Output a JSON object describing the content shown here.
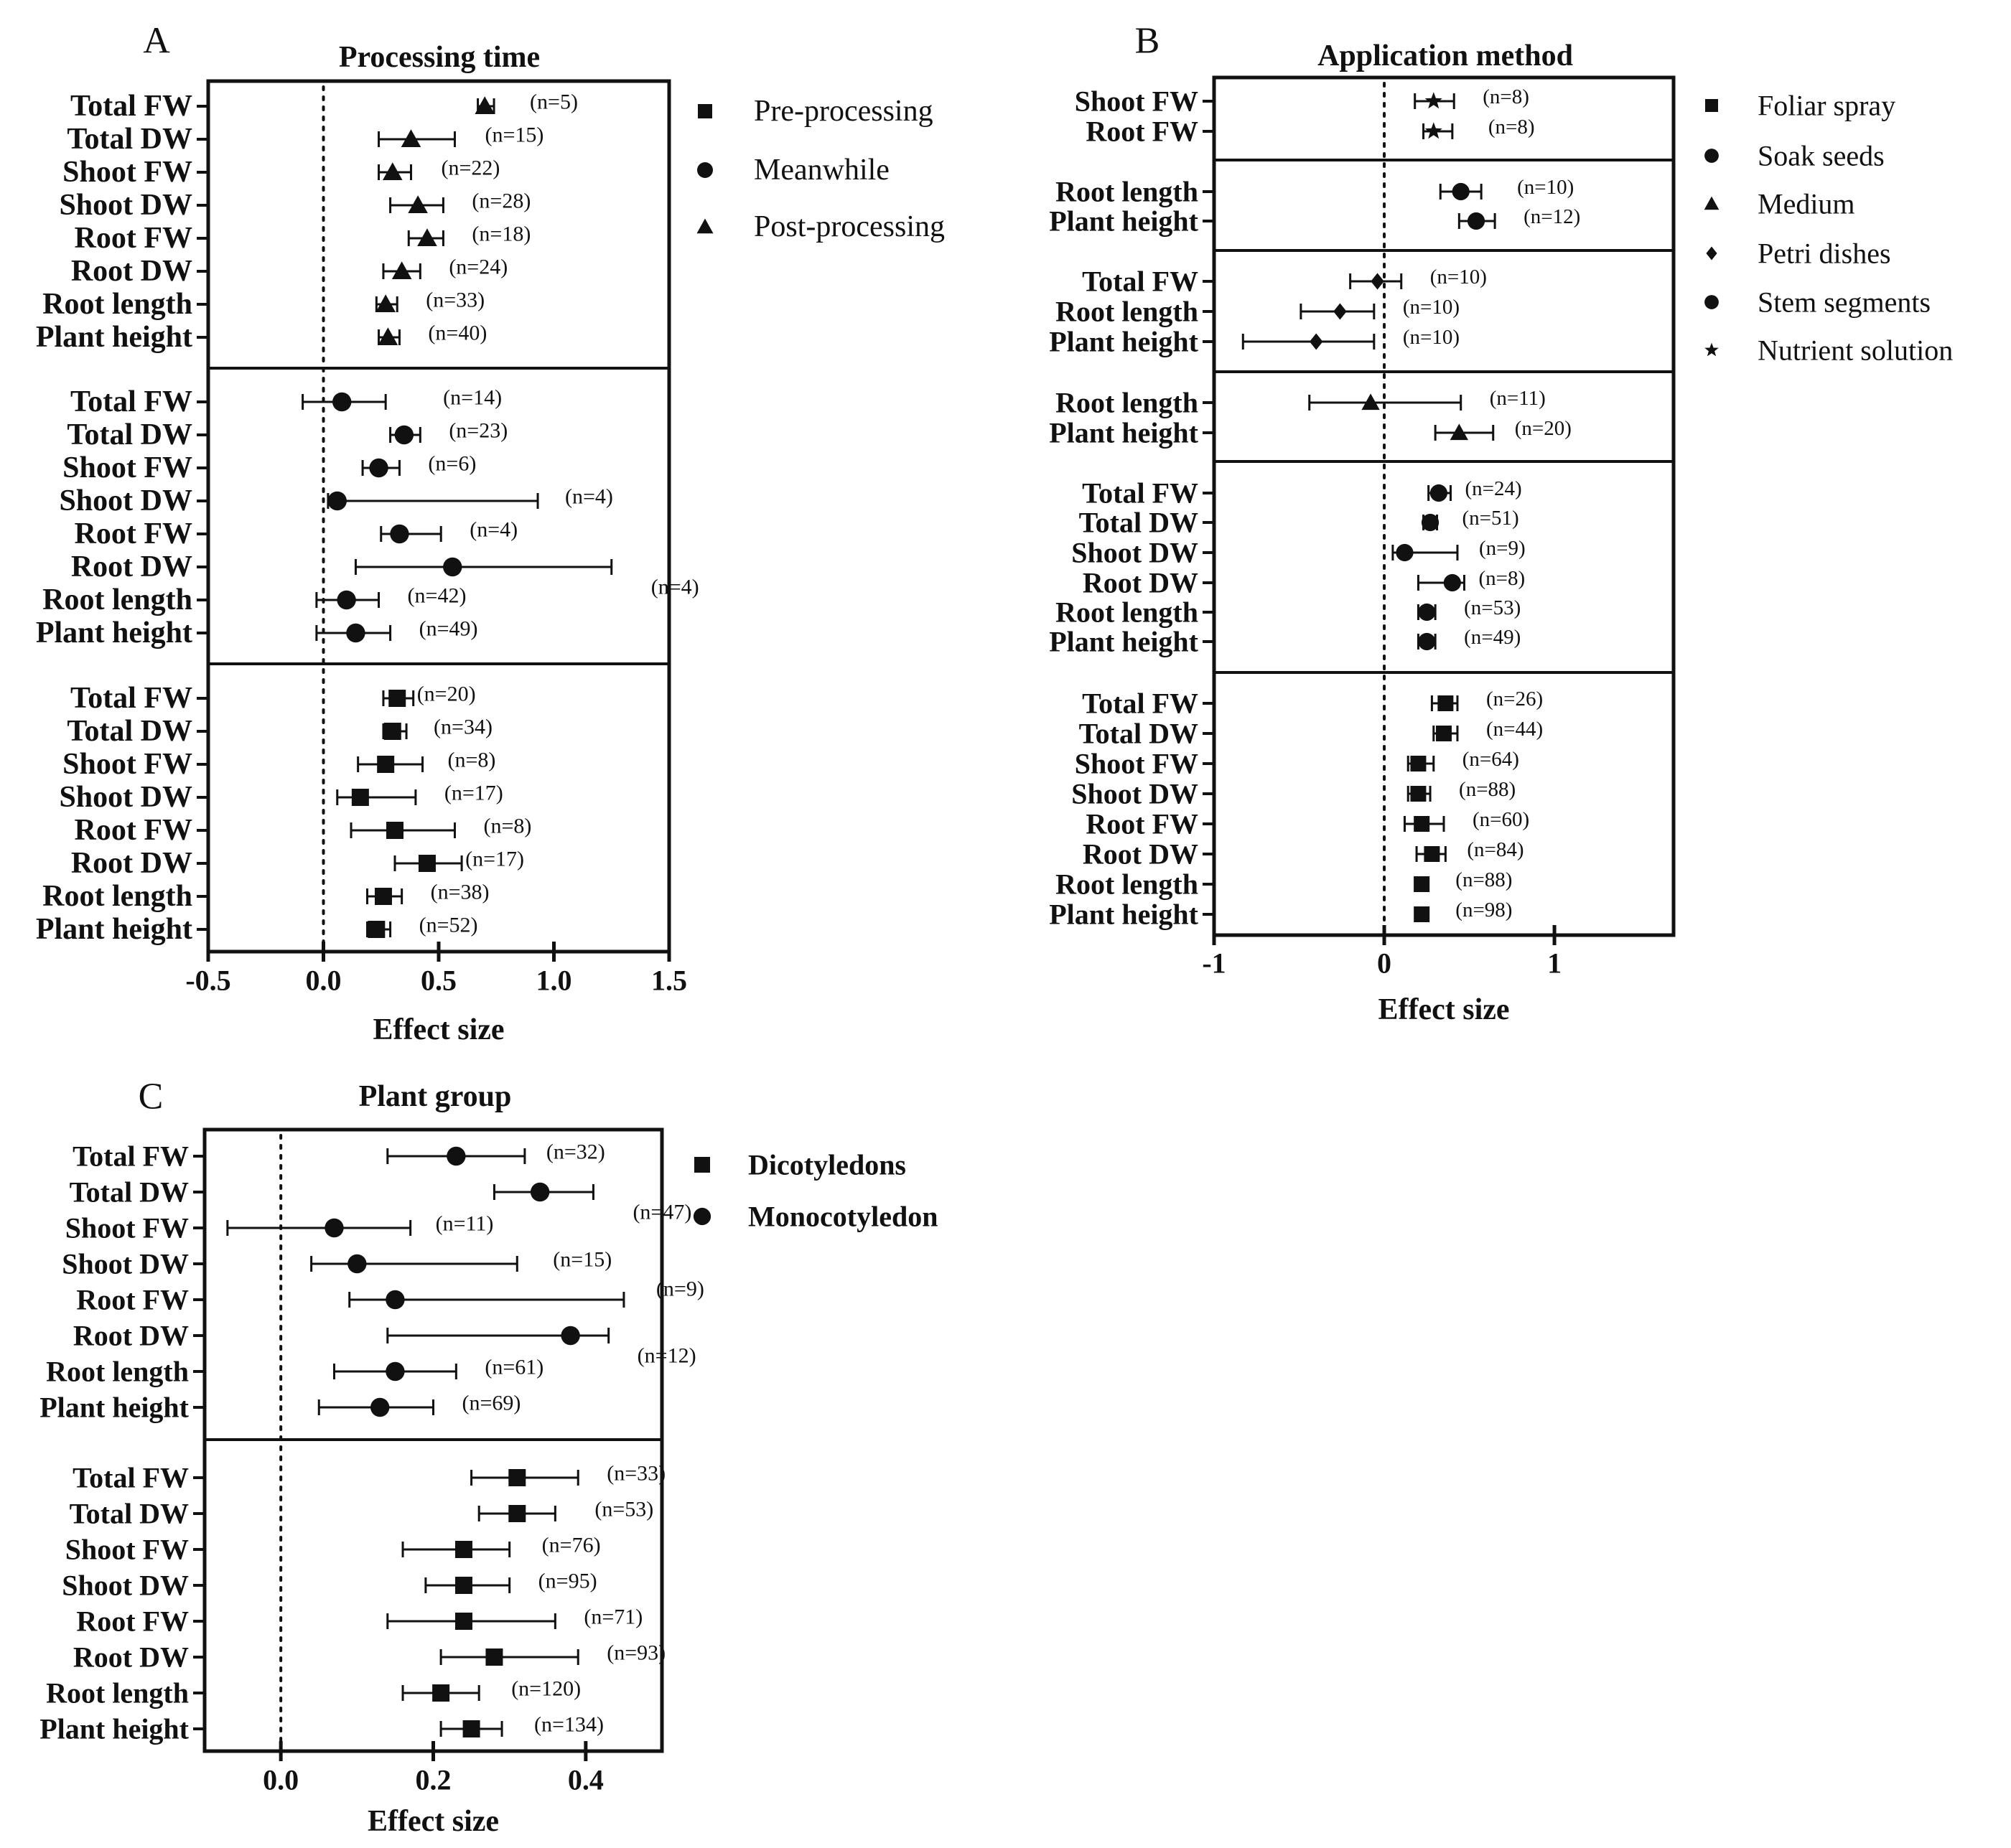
{
  "colors": {
    "ink": "#111111",
    "background": "#ffffff"
  },
  "chart_data": [
    {
      "type": "forest",
      "panel_letter": "A",
      "title": "Processing time",
      "xlabel": "Effect size",
      "xlim": [
        -0.5,
        1.5
      ],
      "xticks": [
        -0.5,
        0.0,
        0.5,
        1.0,
        1.5
      ],
      "xtick_labels": [
        "-0.5",
        "0.0",
        "0.5",
        "1.0",
        "1.5"
      ],
      "reference_line": 0,
      "legend": [
        {
          "label": "Pre-processing",
          "marker": "square"
        },
        {
          "label": "Meanwhile",
          "marker": "circle"
        },
        {
          "label": "Post-processing",
          "marker": "triangle"
        }
      ],
      "groups": [
        {
          "marker": "triangle",
          "rows": [
            {
              "label": "Total FW",
              "est": 0.7,
              "lo": 0.67,
              "hi": 0.74,
              "n": "(n=5)"
            },
            {
              "label": "Total DW",
              "est": 0.38,
              "lo": 0.24,
              "hi": 0.57,
              "n": "(n=15)"
            },
            {
              "label": "Shoot FW",
              "est": 0.3,
              "lo": 0.24,
              "hi": 0.38,
              "n": "(n=22)"
            },
            {
              "label": "Shoot DW",
              "est": 0.41,
              "lo": 0.29,
              "hi": 0.52,
              "n": "(n=28)"
            },
            {
              "label": "Root FW",
              "est": 0.45,
              "lo": 0.37,
              "hi": 0.52,
              "n": "(n=18)"
            },
            {
              "label": "Root DW",
              "est": 0.34,
              "lo": 0.26,
              "hi": 0.42,
              "n": "(n=24)"
            },
            {
              "label": "Root length",
              "est": 0.27,
              "lo": 0.23,
              "hi": 0.32,
              "n": "(n=33)"
            },
            {
              "label": "Plant height",
              "est": 0.28,
              "lo": 0.24,
              "hi": 0.33,
              "n": "(n=40)"
            }
          ]
        },
        {
          "marker": "circle",
          "rows": [
            {
              "label": "Total FW",
              "est": 0.08,
              "lo": -0.09,
              "hi": 0.27,
              "n": "(n=14)"
            },
            {
              "label": "Total DW",
              "est": 0.35,
              "lo": 0.29,
              "hi": 0.42,
              "n": "(n=23)"
            },
            {
              "label": "Shoot FW",
              "est": 0.24,
              "lo": 0.17,
              "hi": 0.33,
              "n": "(n=6)"
            },
            {
              "label": "Shoot DW",
              "est": 0.06,
              "lo": 0.02,
              "hi": 0.93,
              "n": "(n=4)"
            },
            {
              "label": "Root FW",
              "est": 0.33,
              "lo": 0.25,
              "hi": 0.51,
              "n": "(n=4)"
            },
            {
              "label": "Root DW",
              "est": 0.56,
              "lo": 0.14,
              "hi": 1.25,
              "n": "(n=4)"
            },
            {
              "label": "Root length",
              "est": 0.1,
              "lo": -0.03,
              "hi": 0.24,
              "n": "(n=42)"
            },
            {
              "label": "Plant height",
              "est": 0.14,
              "lo": -0.03,
              "hi": 0.29,
              "n": "(n=49)"
            }
          ]
        },
        {
          "marker": "square",
          "rows": [
            {
              "label": "Total FW",
              "est": 0.32,
              "lo": 0.26,
              "hi": 0.39,
              "n": "(n=20)"
            },
            {
              "label": "Total DW",
              "est": 0.3,
              "lo": 0.26,
              "hi": 0.36,
              "n": "(n=34)"
            },
            {
              "label": "Shoot FW",
              "est": 0.27,
              "lo": 0.15,
              "hi": 0.43,
              "n": "(n=8)"
            },
            {
              "label": "Shoot DW",
              "est": 0.16,
              "lo": 0.06,
              "hi": 0.4,
              "n": "(n=17)"
            },
            {
              "label": "Root FW",
              "est": 0.31,
              "lo": 0.12,
              "hi": 0.57,
              "n": "(n=8)"
            },
            {
              "label": "Root DW",
              "est": 0.45,
              "lo": 0.31,
              "hi": 0.6,
              "n": "(n=17)"
            },
            {
              "label": "Root length",
              "est": 0.26,
              "lo": 0.19,
              "hi": 0.34,
              "n": "(n=38)"
            },
            {
              "label": "Plant height",
              "est": 0.23,
              "lo": 0.19,
              "hi": 0.29,
              "n": "(n=52)"
            }
          ]
        }
      ]
    },
    {
      "type": "forest",
      "panel_letter": "B",
      "title": "Application method",
      "xlabel": "Effect size",
      "xlim": [
        -1,
        1.7
      ],
      "xticks": [
        -1,
        0,
        1
      ],
      "xtick_labels": [
        "-1",
        "0",
        "1"
      ],
      "reference_line": 0,
      "legend": [
        {
          "label": "Foliar spray",
          "marker": "square"
        },
        {
          "label": "Soak seeds",
          "marker": "circle"
        },
        {
          "label": "Medium",
          "marker": "triangle"
        },
        {
          "label": "Petri dishes",
          "marker": "diamond"
        },
        {
          "label": "Stem segments",
          "marker": "circle"
        },
        {
          "label": "Nutrient solution",
          "marker": "star"
        }
      ],
      "groups": [
        {
          "marker": "star",
          "rows": [
            {
              "label": "Shoot FW",
              "est": 0.29,
              "lo": 0.18,
              "hi": 0.41,
              "n": "(n=8)"
            },
            {
              "label": "Root FW",
              "est": 0.29,
              "lo": 0.23,
              "hi": 0.4,
              "n": "(n=8)"
            }
          ]
        },
        {
          "marker": "circle",
          "rows": [
            {
              "label": "Root length",
              "est": 0.45,
              "lo": 0.33,
              "hi": 0.57,
              "n": "(n=10)"
            },
            {
              "label": "Plant height",
              "est": 0.54,
              "lo": 0.44,
              "hi": 0.65,
              "n": "(n=12)"
            }
          ]
        },
        {
          "marker": "diamond",
          "rows": [
            {
              "label": "Total FW",
              "est": -0.04,
              "lo": -0.2,
              "hi": 0.1,
              "n": "(n=10)"
            },
            {
              "label": "Root length",
              "est": -0.26,
              "lo": -0.49,
              "hi": -0.06,
              "n": "(n=10)"
            },
            {
              "label": "Plant height",
              "est": -0.4,
              "lo": -0.83,
              "hi": -0.06,
              "n": "(n=10)"
            }
          ]
        },
        {
          "marker": "triangle",
          "rows": [
            {
              "label": "Root length",
              "est": -0.08,
              "lo": -0.44,
              "hi": 0.45,
              "n": "(n=11)"
            },
            {
              "label": "Plant height",
              "est": 0.44,
              "lo": 0.3,
              "hi": 0.64,
              "n": "(n=20)"
            }
          ]
        },
        {
          "marker": "circle",
          "rows": [
            {
              "label": "Total FW",
              "est": 0.32,
              "lo": 0.26,
              "hi": 0.39,
              "n": "(n=24)"
            },
            {
              "label": "Total DW",
              "est": 0.27,
              "lo": 0.23,
              "hi": 0.31,
              "n": "(n=51)"
            },
            {
              "label": "Shoot DW",
              "est": 0.12,
              "lo": 0.05,
              "hi": 0.43,
              "n": "(n=9)"
            },
            {
              "label": "Root DW",
              "est": 0.4,
              "lo": 0.2,
              "hi": 0.47,
              "n": "(n=8)"
            },
            {
              "label": "Root length",
              "est": 0.25,
              "lo": 0.2,
              "hi": 0.3,
              "n": "(n=53)"
            },
            {
              "label": "Plant height",
              "est": 0.25,
              "lo": 0.2,
              "hi": 0.3,
              "n": "(n=49)"
            }
          ]
        },
        {
          "marker": "square",
          "rows": [
            {
              "label": "Total FW",
              "est": 0.36,
              "lo": 0.28,
              "hi": 0.43,
              "n": "(n=26)"
            },
            {
              "label": "Total DW",
              "est": 0.35,
              "lo": 0.29,
              "hi": 0.43,
              "n": "(n=44)"
            },
            {
              "label": "Shoot FW",
              "est": 0.2,
              "lo": 0.14,
              "hi": 0.29,
              "n": "(n=64)"
            },
            {
              "label": "Shoot DW",
              "est": 0.2,
              "lo": 0.14,
              "hi": 0.27,
              "n": "(n=88)"
            },
            {
              "label": "Root FW",
              "est": 0.22,
              "lo": 0.12,
              "hi": 0.35,
              "n": "(n=60)"
            },
            {
              "label": "Root DW",
              "est": 0.28,
              "lo": 0.19,
              "hi": 0.36,
              "n": "(n=84)"
            },
            {
              "label": "Root length",
              "est": 0.22,
              "lo": 0.18,
              "hi": 0.25,
              "n": "(n=88)"
            },
            {
              "label": "Plant height",
              "est": 0.22,
              "lo": 0.19,
              "hi": 0.25,
              "n": "(n=98)"
            }
          ]
        }
      ]
    },
    {
      "type": "forest",
      "panel_letter": "C",
      "title": "Plant group",
      "xlabel": "Effect size",
      "xlim": [
        -0.1,
        0.5
      ],
      "xticks": [
        0.0,
        0.2,
        0.4
      ],
      "xtick_labels": [
        "0.0",
        "0.2",
        "0.4"
      ],
      "reference_line": 0,
      "legend": [
        {
          "label": "Dicotyledons",
          "marker": "square"
        },
        {
          "label": "Monocotyledon",
          "marker": "circle"
        }
      ],
      "groups": [
        {
          "marker": "circle",
          "rows": [
            {
              "label": "Total FW",
              "est": 0.23,
              "lo": 0.14,
              "hi": 0.32,
              "n": "(n=32)"
            },
            {
              "label": "Total DW",
              "est": 0.34,
              "lo": 0.28,
              "hi": 0.41,
              "n": "(n=47)"
            },
            {
              "label": "Shoot FW",
              "est": 0.07,
              "lo": -0.07,
              "hi": 0.17,
              "n": "(n=11)"
            },
            {
              "label": "Shoot DW",
              "est": 0.1,
              "lo": 0.04,
              "hi": 0.31,
              "n": "(n=15)"
            },
            {
              "label": "Root FW",
              "est": 0.15,
              "lo": 0.09,
              "hi": 0.45,
              "n": "(n=9)"
            },
            {
              "label": "Root DW",
              "est": 0.38,
              "lo": 0.14,
              "hi": 0.43,
              "n": "(n=12)"
            },
            {
              "label": "Root length",
              "est": 0.15,
              "lo": 0.07,
              "hi": 0.23,
              "n": "(n=61)"
            },
            {
              "label": "Plant height",
              "est": 0.13,
              "lo": 0.05,
              "hi": 0.2,
              "n": "(n=69)"
            }
          ]
        },
        {
          "marker": "square",
          "rows": [
            {
              "label": "Total FW",
              "est": 0.31,
              "lo": 0.25,
              "hi": 0.39,
              "n": "(n=33)"
            },
            {
              "label": "Total DW",
              "est": 0.31,
              "lo": 0.26,
              "hi": 0.36,
              "n": "(n=53)"
            },
            {
              "label": "Shoot FW",
              "est": 0.24,
              "lo": 0.16,
              "hi": 0.3,
              "n": "(n=76)"
            },
            {
              "label": "Shoot DW",
              "est": 0.24,
              "lo": 0.19,
              "hi": 0.3,
              "n": "(n=95)"
            },
            {
              "label": "Root FW",
              "est": 0.24,
              "lo": 0.14,
              "hi": 0.36,
              "n": "(n=71)"
            },
            {
              "label": "Root DW",
              "est": 0.28,
              "lo": 0.21,
              "hi": 0.39,
              "n": "(n=93)"
            },
            {
              "label": "Root length",
              "est": 0.21,
              "lo": 0.16,
              "hi": 0.26,
              "n": "(n=120)"
            },
            {
              "label": "Plant height",
              "est": 0.25,
              "lo": 0.21,
              "hi": 0.29,
              "n": "(n=134)"
            }
          ]
        }
      ]
    }
  ]
}
